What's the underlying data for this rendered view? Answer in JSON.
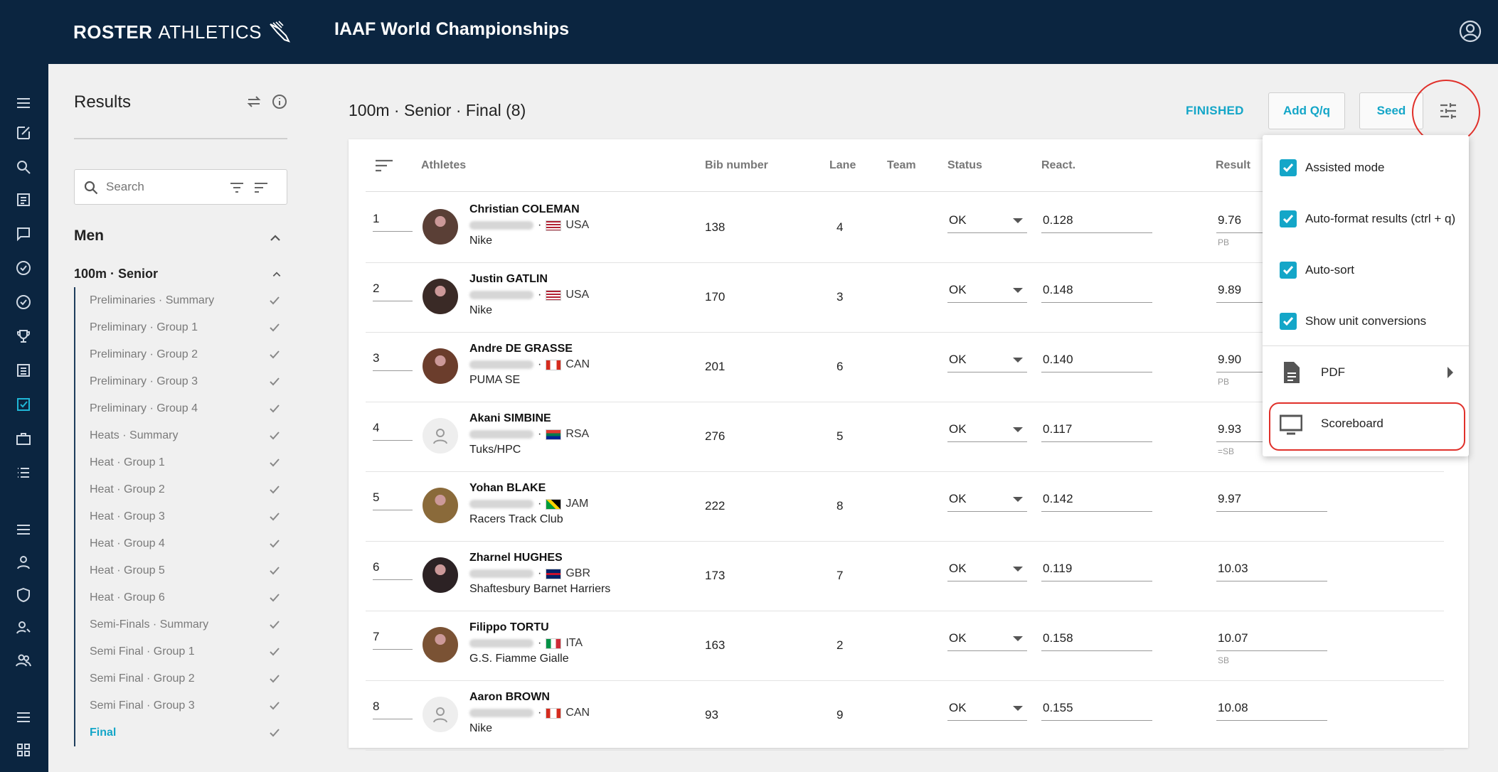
{
  "app": {
    "brand_bold": "ROSTER",
    "brand_thin": "ATHLETICS",
    "event_title": "IAAF World Championships"
  },
  "results_panel": {
    "title": "Results",
    "search_placeholder": "Search",
    "group_label": "Men",
    "event_label": "100m · Senior",
    "rounds": [
      {
        "label": "Preliminaries · Summary"
      },
      {
        "label": "Preliminary · Group 1"
      },
      {
        "label": "Preliminary · Group 2"
      },
      {
        "label": "Preliminary · Group 3"
      },
      {
        "label": "Preliminary · Group 4"
      },
      {
        "label": "Heats · Summary"
      },
      {
        "label": "Heat · Group 1"
      },
      {
        "label": "Heat · Group 2"
      },
      {
        "label": "Heat · Group 3"
      },
      {
        "label": "Heat · Group 4"
      },
      {
        "label": "Heat · Group 5"
      },
      {
        "label": "Heat · Group 6"
      },
      {
        "label": "Semi-Finals · Summary"
      },
      {
        "label": "Semi Final · Group 1"
      },
      {
        "label": "Semi Final · Group 2"
      },
      {
        "label": "Semi Final · Group 3"
      },
      {
        "label": "Final",
        "active": true
      }
    ]
  },
  "main": {
    "title": "100m · Senior · Final (8)",
    "status": "FINISHED",
    "add_q_label": "Add Q/q",
    "seed_label": "Seed"
  },
  "table": {
    "headers": {
      "athletes": "Athletes",
      "bib": "Bib number",
      "lane": "Lane",
      "team": "Team",
      "status": "Status",
      "react": "React.",
      "result": "Result"
    },
    "rows": [
      {
        "pos": "1",
        "name": "Christian COLEMAN",
        "country": "USA",
        "club": "Nike",
        "bib": "138",
        "lane": "4",
        "status": "OK",
        "react": "0.128",
        "result": "9.76",
        "note": "PB"
      },
      {
        "pos": "2",
        "name": "Justin GATLIN",
        "country": "USA",
        "club": "Nike",
        "bib": "170",
        "lane": "3",
        "status": "OK",
        "react": "0.148",
        "result": "9.89",
        "note": ""
      },
      {
        "pos": "3",
        "name": "Andre DE GRASSE",
        "country": "CAN",
        "club": "PUMA SE",
        "bib": "201",
        "lane": "6",
        "status": "OK",
        "react": "0.140",
        "result": "9.90",
        "note": "PB"
      },
      {
        "pos": "4",
        "name": "Akani SIMBINE",
        "country": "RSA",
        "club": "Tuks/HPC",
        "bib": "276",
        "lane": "5",
        "status": "OK",
        "react": "0.117",
        "result": "9.93",
        "note": "=SB"
      },
      {
        "pos": "5",
        "name": "Yohan BLAKE",
        "country": "JAM",
        "club": "Racers Track Club",
        "bib": "222",
        "lane": "8",
        "status": "OK",
        "react": "0.142",
        "result": "9.97",
        "note": ""
      },
      {
        "pos": "6",
        "name": "Zharnel HUGHES",
        "country": "GBR",
        "club": "Shaftesbury Barnet Harriers",
        "bib": "173",
        "lane": "7",
        "status": "OK",
        "react": "0.119",
        "result": "10.03",
        "note": ""
      },
      {
        "pos": "7",
        "name": "Filippo TORTU",
        "country": "ITA",
        "club": "G.S. Fiamme Gialle",
        "bib": "163",
        "lane": "2",
        "status": "OK",
        "react": "0.158",
        "result": "10.07",
        "note": "SB"
      },
      {
        "pos": "8",
        "name": "Aaron BROWN",
        "country": "CAN",
        "club": "Nike",
        "bib": "93",
        "lane": "9",
        "status": "OK",
        "react": "0.155",
        "result": "10.08",
        "note": ""
      }
    ]
  },
  "menu": {
    "assisted_mode": "Assisted mode",
    "auto_format": "Auto-format results (ctrl + q)",
    "auto_sort": "Auto-sort",
    "unit_conversions": "Show unit conversions",
    "pdf": "PDF",
    "scoreboard": "Scoreboard"
  },
  "colors": {
    "navy": "#0b2540",
    "accent": "#14a6c8",
    "highlight": "#e0302a"
  }
}
